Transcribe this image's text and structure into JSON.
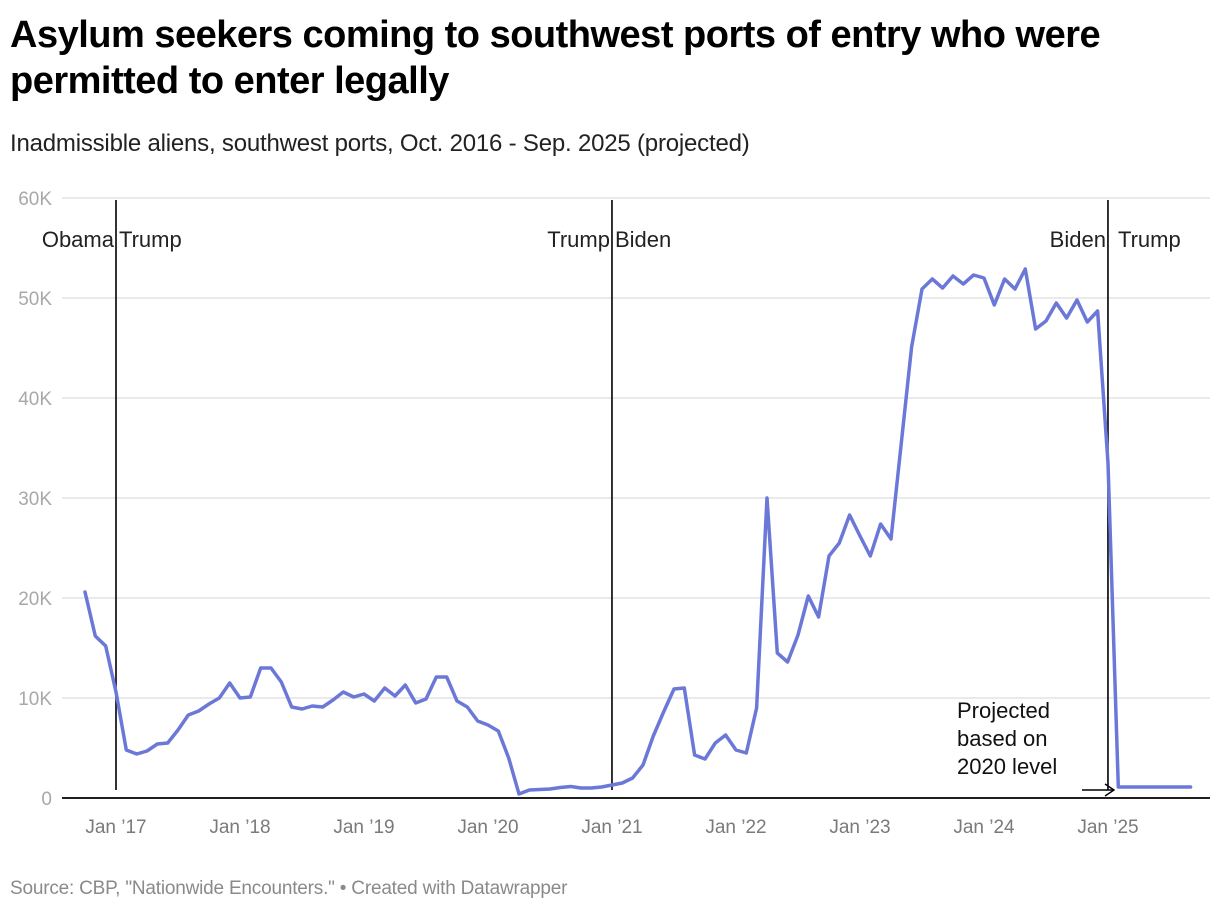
{
  "header": {
    "title": "Asylum seekers coming to southwest ports of entry who were permitted to enter legally",
    "subtitle": "Inadmissible aliens, southwest ports, Oct. 2016 - Sep. 2025 (projected)"
  },
  "footer": {
    "source": "Source: CBP, \"Nationwide Encounters.\" • Created with Datawrapper"
  },
  "colors": {
    "line": "#6b78d8",
    "grid": "#e3e3e3",
    "axis": "#000000",
    "marker": "#000000"
  },
  "annotations": {
    "eras": [
      {
        "label_left": "Obama",
        "label_right": "Trump",
        "month_index": 3
      },
      {
        "label_left": "Trump",
        "label_right": "Biden",
        "month_index": 51
      },
      {
        "label_left": "Biden",
        "label_right": "Trump",
        "month_index": 99
      }
    ],
    "projection_note": [
      "Projected",
      "based on",
      "2020 level"
    ]
  },
  "chart_data": {
    "type": "line",
    "title": "Asylum seekers coming to southwest ports of entry who were permitted to enter legally",
    "subtitle": "Inadmissible aliens, southwest ports, Oct. 2016 - Sep. 2025 (projected)",
    "xlabel": "",
    "ylabel": "",
    "ylim": [
      0,
      60000
    ],
    "yticks": [
      0,
      10000,
      20000,
      30000,
      40000,
      50000,
      60000
    ],
    "ytick_labels": [
      "0",
      "10K",
      "20K",
      "30K",
      "40K",
      "50K",
      "60K"
    ],
    "xtick_labels": [
      "Jan ’17",
      "Jan ’18",
      "Jan ’19",
      "Jan ’20",
      "Jan ’21",
      "Jan ’22",
      "Jan ’23",
      "Jan ’24",
      "Jan ’25"
    ],
    "xtick_month_index": [
      3,
      15,
      27,
      39,
      51,
      63,
      75,
      87,
      99
    ],
    "grid": true,
    "legend": "none",
    "start": "2016-10",
    "end": "2025-09",
    "series": [
      {
        "name": "Inadmissible aliens, southwest ports",
        "values": [
          20600,
          16200,
          15200,
          10600,
          4800,
          4400,
          4700,
          5400,
          5500,
          6800,
          8300,
          8700,
          9400,
          10000,
          11500,
          10000,
          10100,
          13000,
          13000,
          11600,
          9100,
          8900,
          9200,
          9100,
          9800,
          10600,
          10100,
          10400,
          9700,
          11000,
          10200,
          11300,
          9500,
          9900,
          12100,
          12100,
          9700,
          9100,
          7700,
          7300,
          6700,
          4000,
          400,
          800,
          850,
          900,
          1050,
          1150,
          1000,
          1000,
          1100,
          1300,
          1500,
          2000,
          3300,
          6200,
          8600,
          10900,
          11000,
          4300,
          3900,
          5500,
          6300,
          4800,
          4500,
          9000,
          30000,
          14500,
          13600,
          16300,
          20200,
          18100,
          24200,
          25500,
          28300,
          26200,
          24200,
          27400,
          25900,
          35500,
          45100,
          50900,
          51900,
          51000,
          52200,
          51400,
          52300,
          52000,
          49300,
          51900,
          50900,
          52900,
          46900,
          47700,
          49500,
          48000,
          49800,
          47600,
          48700,
          33500,
          1100,
          1100,
          1100,
          1100,
          1100,
          1100,
          1100,
          1100
        ]
      }
    ],
    "annotations": [
      {
        "text": "Obama | Trump",
        "at": "2017-01"
      },
      {
        "text": "Trump | Biden",
        "at": "2021-01"
      },
      {
        "text": "Biden | Trump",
        "at": "2025-01"
      },
      {
        "text": "Projected based on 2020 level",
        "at": "2025-02"
      }
    ]
  }
}
